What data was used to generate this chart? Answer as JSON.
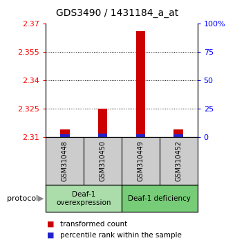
{
  "title": "GDS3490 / 1431184_a_at",
  "samples": [
    "GSM310448",
    "GSM310450",
    "GSM310449",
    "GSM310452"
  ],
  "transformed_counts": [
    2.314,
    2.325,
    2.366,
    2.314
  ],
  "percentile_ranks": [
    2.3115,
    2.312,
    2.3115,
    2.3115
  ],
  "baseline": 2.31,
  "ylim_min": 2.31,
  "ylim_max": 2.37,
  "yticks_left": [
    2.31,
    2.325,
    2.34,
    2.355,
    2.37
  ],
  "yticks_right": [
    0,
    25,
    50,
    75,
    100
  ],
  "bar_color_red": "#cc0000",
  "bar_color_blue": "#2222cc",
  "group1_label": "Deaf-1\noverexpression",
  "group2_label": "Deaf-1 deficiency",
  "group1_color": "#aaddaa",
  "group2_color": "#77cc77",
  "protocol_label": "protocol",
  "legend_red": "transformed count",
  "legend_blue": "percentile rank within the sample",
  "sample_box_color": "#cccccc",
  "title_fontsize": 10,
  "tick_fontsize": 8,
  "bar_width": 0.25
}
